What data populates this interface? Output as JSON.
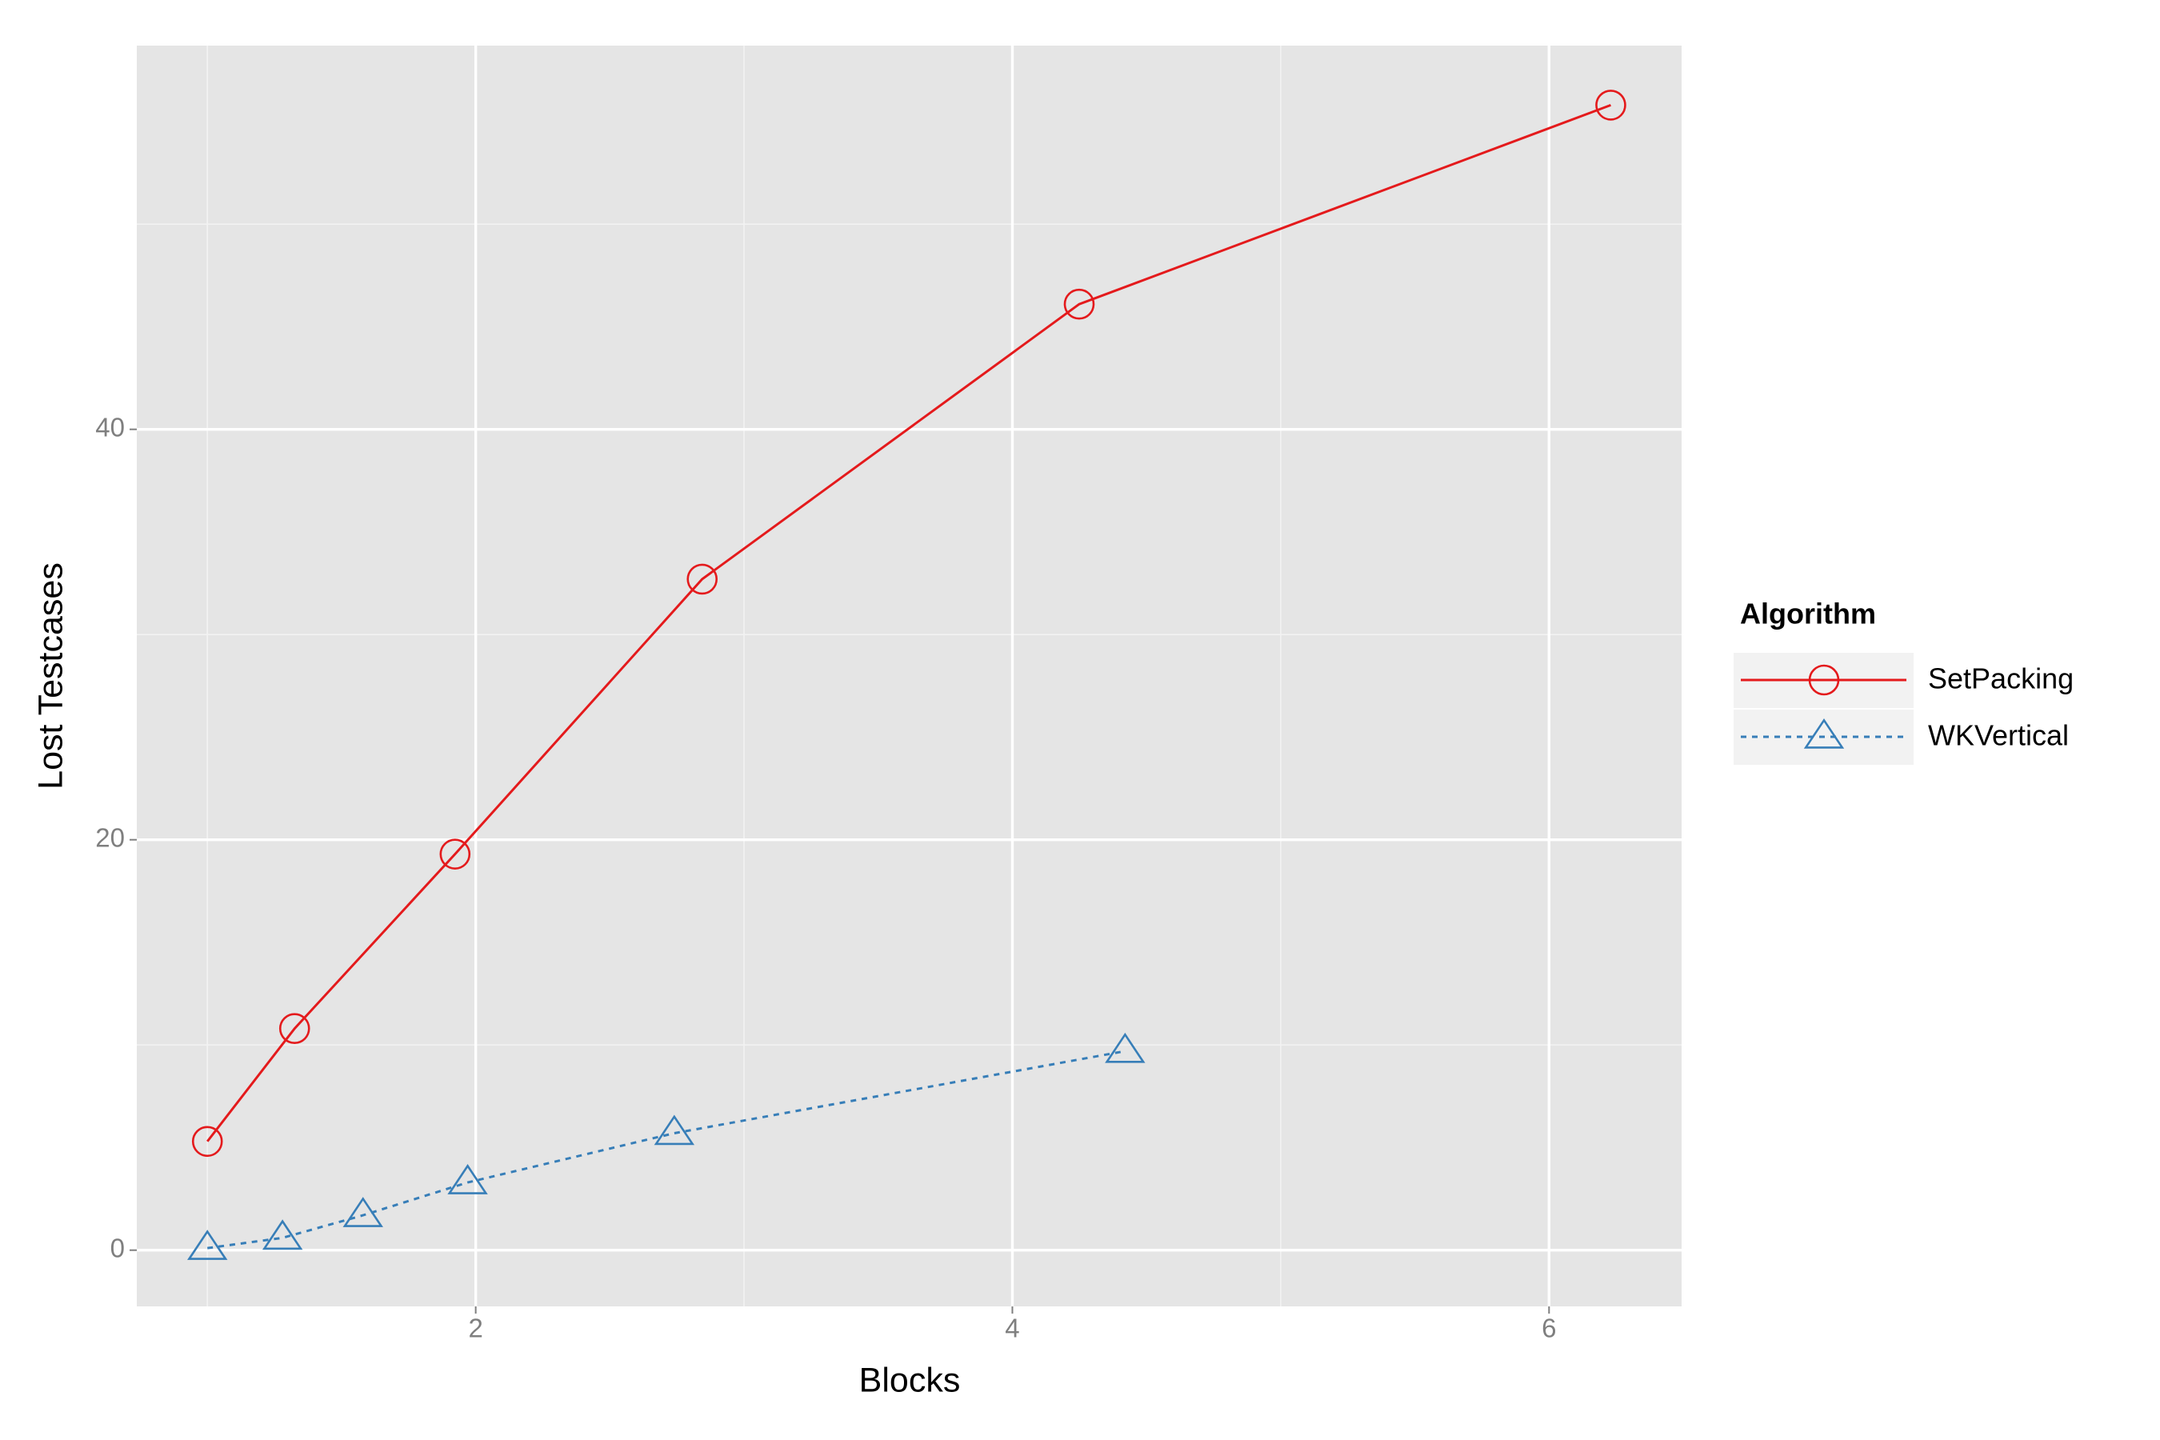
{
  "chart_data": {
    "type": "line",
    "x_label": "Blocks",
    "y_label": "Lost Testcases",
    "legend_title": "Algorithm",
    "legend_position": "right",
    "xlim": [
      0.737,
      6.494
    ],
    "ylim": [
      -2.74,
      58.7
    ],
    "xticks": [
      2,
      4,
      6
    ],
    "yticks": [
      0,
      20,
      40
    ],
    "grid": true,
    "minor_grid": true,
    "series": [
      {
        "name": "SetPacking",
        "color": "#e41a1c",
        "marker": "circle",
        "dash": "solid",
        "x": [
          1,
          1.325,
          1.923,
          2.844,
          4.249,
          6.23
        ],
        "values": [
          5.3,
          10.8,
          19.3,
          32.7,
          46.1,
          55.8
        ]
      },
      {
        "name": "WKVertical",
        "color": "#377eb8",
        "marker": "triangle",
        "dash": "dotted",
        "x": [
          1,
          1.28,
          1.58,
          1.97,
          2.74,
          4.42
        ],
        "values": [
          0.1,
          0.6,
          1.7,
          3.3,
          5.7,
          9.7
        ]
      }
    ]
  }
}
